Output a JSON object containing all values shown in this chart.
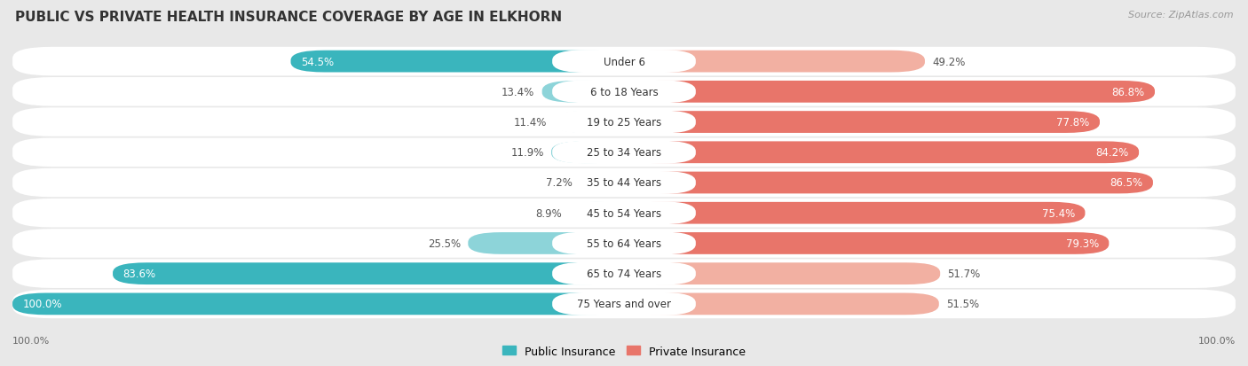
{
  "title": "PUBLIC VS PRIVATE HEALTH INSURANCE COVERAGE BY AGE IN ELKHORN",
  "source": "Source: ZipAtlas.com",
  "categories": [
    "Under 6",
    "6 to 18 Years",
    "19 to 25 Years",
    "25 to 34 Years",
    "35 to 44 Years",
    "45 to 54 Years",
    "55 to 64 Years",
    "65 to 74 Years",
    "75 Years and over"
  ],
  "public_values": [
    54.5,
    13.4,
    11.4,
    11.9,
    7.2,
    8.9,
    25.5,
    83.6,
    100.0
  ],
  "private_values": [
    49.2,
    86.8,
    77.8,
    84.2,
    86.5,
    75.4,
    79.3,
    51.7,
    51.5
  ],
  "public_color_dark": "#3ab5bd",
  "public_color_light": "#8dd4d9",
  "private_color_dark": "#e8756a",
  "private_color_light": "#f2b0a2",
  "row_bg_color": "#f0f0f0",
  "bar_bg_color": "#e8e8e8",
  "background_color": "#e8e8e8",
  "title_fontsize": 11,
  "label_fontsize": 8.5,
  "category_fontsize": 8.5,
  "legend_fontsize": 9,
  "source_fontsize": 8,
  "max_value": 100.0,
  "pub_dark_threshold": 50,
  "priv_dark_threshold": 60
}
